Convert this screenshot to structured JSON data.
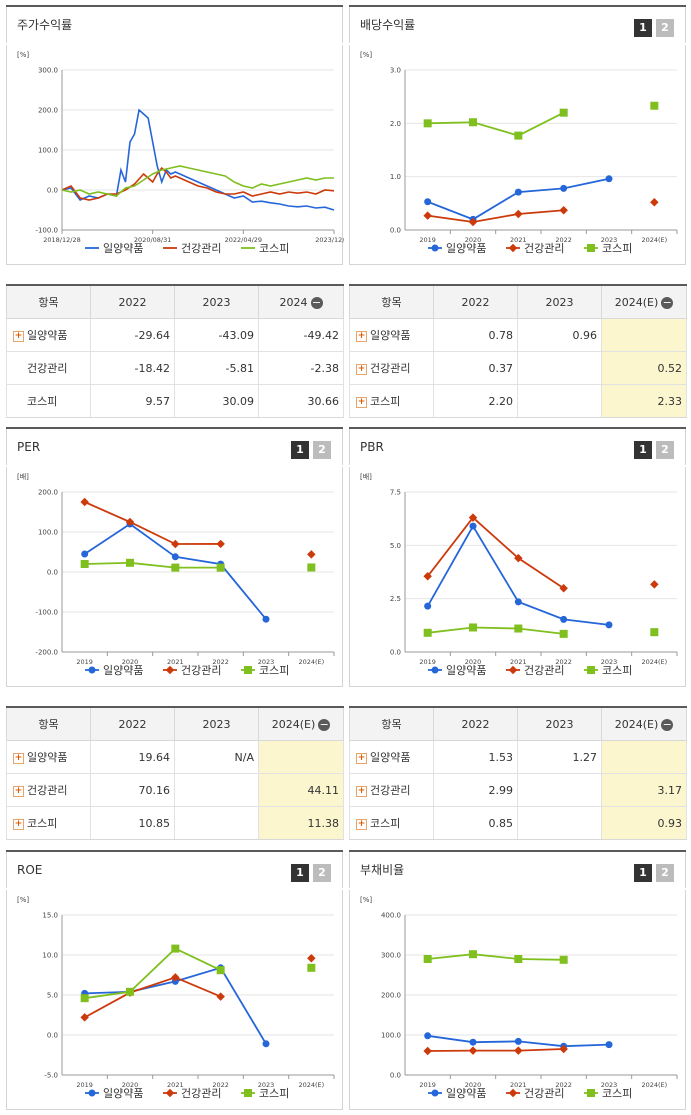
{
  "colors": {
    "series": [
      "#2566d9",
      "#cc3a0c",
      "#7fbf1e"
    ]
  },
  "panels": {
    "stock": {
      "title": "주가수익률"
    },
    "dividend": {
      "title": "배당수익률"
    },
    "per": {
      "title": "PER"
    },
    "pbr": {
      "title": "PBR"
    },
    "roe": {
      "title": "ROE"
    },
    "debt": {
      "title": "부채비율"
    }
  },
  "pager": {
    "page1": "1",
    "page2": "2"
  },
  "tables": {
    "stock": {
      "header": [
        "항목",
        "2022",
        "2023",
        "2024"
      ],
      "rows": [
        {
          "name": "일양약품",
          "v": [
            "-29.64",
            "-43.09",
            "-49.42"
          ],
          "plus": true
        },
        {
          "name": "건강관리",
          "v": [
            "-18.42",
            "-5.81",
            "-2.38"
          ],
          "plus": false
        },
        {
          "name": "코스피",
          "v": [
            "9.57",
            "30.09",
            "30.66"
          ],
          "plus": false
        }
      ]
    },
    "dividend": {
      "header": [
        "항목",
        "2022",
        "2023",
        "2024(E)"
      ],
      "rows": [
        {
          "name": "일양약품",
          "v": [
            "0.78",
            "0.96",
            ""
          ],
          "plus": true
        },
        {
          "name": "건강관리",
          "v": [
            "0.37",
            "",
            "0.52"
          ],
          "plus": true
        },
        {
          "name": "코스피",
          "v": [
            "2.20",
            "",
            "2.33"
          ],
          "plus": true
        }
      ]
    },
    "per": {
      "header": [
        "항목",
        "2022",
        "2023",
        "2024(E)"
      ],
      "rows": [
        {
          "name": "일양약품",
          "v": [
            "19.64",
            "N/A",
            ""
          ],
          "plus": true
        },
        {
          "name": "건강관리",
          "v": [
            "70.16",
            "",
            "44.11"
          ],
          "plus": true
        },
        {
          "name": "코스피",
          "v": [
            "10.85",
            "",
            "11.38"
          ],
          "plus": true
        }
      ]
    },
    "pbr": {
      "header": [
        "항목",
        "2022",
        "2023",
        "2024(E)"
      ],
      "rows": [
        {
          "name": "일양약품",
          "v": [
            "1.53",
            "1.27",
            ""
          ],
          "plus": true
        },
        {
          "name": "건강관리",
          "v": [
            "2.99",
            "",
            "3.17"
          ],
          "plus": true
        },
        {
          "name": "코스피",
          "v": [
            "0.85",
            "",
            "0.93"
          ],
          "plus": true
        }
      ]
    }
  },
  "chart_data": [
    {
      "id": "stock",
      "type": "line",
      "ylabel": "[%]",
      "ylim": [
        -100,
        300
      ],
      "yticks": [
        -100,
        0,
        100,
        200,
        300
      ],
      "ytick_labels": [
        "-100.0",
        "0.0",
        "100.0",
        "200.0",
        "300.0"
      ],
      "xtick_labels": [
        "2018/12/28",
        "2020/08/31",
        "2022/04/29",
        "2023/12/28"
      ],
      "xlim": [
        0,
        60
      ],
      "series": [
        {
          "name": "일양약품",
          "x": [
            0,
            2,
            4,
            6,
            8,
            10,
            12,
            13,
            14,
            15,
            16,
            17,
            18,
            19,
            20,
            21,
            22,
            23,
            24,
            25,
            26,
            28,
            30,
            32,
            34,
            36,
            38,
            40,
            42,
            44,
            46,
            48,
            50,
            52,
            54,
            56,
            58,
            60
          ],
          "y": [
            0,
            5,
            -25,
            -15,
            -20,
            -10,
            -15,
            50,
            20,
            120,
            140,
            200,
            190,
            180,
            120,
            60,
            20,
            50,
            40,
            45,
            40,
            30,
            20,
            10,
            0,
            -10,
            -20,
            -15,
            -30,
            -28,
            -32,
            -35,
            -40,
            -42,
            -40,
            -45,
            -43,
            -50
          ]
        },
        {
          "name": "건강관리",
          "x": [
            0,
            2,
            4,
            6,
            8,
            10,
            12,
            14,
            16,
            18,
            19,
            20,
            21,
            22,
            23,
            24,
            25,
            26,
            28,
            30,
            32,
            34,
            36,
            38,
            40,
            42,
            44,
            46,
            48,
            50,
            52,
            54,
            56,
            58,
            60
          ],
          "y": [
            0,
            10,
            -20,
            -25,
            -20,
            -10,
            -10,
            0,
            15,
            40,
            30,
            20,
            40,
            55,
            45,
            30,
            35,
            30,
            20,
            10,
            5,
            -5,
            -10,
            -10,
            -5,
            -15,
            -10,
            -5,
            -10,
            -5,
            -8,
            -5,
            -10,
            0,
            -2
          ]
        },
        {
          "name": "코스피",
          "x": [
            0,
            2,
            4,
            6,
            8,
            10,
            12,
            14,
            16,
            18,
            20,
            21,
            22,
            24,
            26,
            28,
            30,
            32,
            34,
            36,
            38,
            40,
            42,
            44,
            46,
            48,
            50,
            52,
            54,
            56,
            58,
            60
          ],
          "y": [
            0,
            -5,
            0,
            -10,
            -5,
            -10,
            -15,
            5,
            10,
            25,
            40,
            45,
            50,
            55,
            60,
            55,
            50,
            45,
            40,
            35,
            20,
            10,
            5,
            15,
            10,
            15,
            20,
            25,
            30,
            25,
            30,
            30
          ]
        }
      ]
    },
    {
      "id": "dividend",
      "type": "line",
      "ylabel": "[%]",
      "ylim": [
        0,
        3
      ],
      "yticks": [
        0,
        1,
        2,
        3
      ],
      "ytick_labels": [
        "0.0",
        "1.0",
        "2.0",
        "3.0"
      ],
      "categories": [
        "2019",
        "2020",
        "2021",
        "2022",
        "2023",
        "2024(E)"
      ],
      "series": [
        {
          "name": "일양약품",
          "values": [
            0.53,
            0.2,
            0.71,
            0.78,
            0.96,
            null
          ]
        },
        {
          "name": "건강관리",
          "values": [
            0.27,
            0.15,
            0.3,
            0.37,
            null,
            0.52
          ]
        },
        {
          "name": "코스피",
          "values": [
            2.0,
            2.02,
            1.77,
            2.2,
            null,
            2.33
          ]
        }
      ]
    },
    {
      "id": "per",
      "type": "line",
      "ylabel": "[배]",
      "ylim": [
        -200,
        200
      ],
      "yticks": [
        -200,
        -100,
        0,
        100,
        200
      ],
      "ytick_labels": [
        "-200.0",
        "-100.0",
        "0.0",
        "100.0",
        "200.0"
      ],
      "categories": [
        "2019",
        "2020",
        "2021",
        "2022",
        "2023",
        "2024(E)"
      ],
      "series": [
        {
          "name": "일양약품",
          "values": [
            45,
            120,
            38,
            19.64,
            -118,
            null
          ]
        },
        {
          "name": "건강관리",
          "values": [
            175,
            125,
            70,
            70.16,
            null,
            44.11
          ]
        },
        {
          "name": "코스피",
          "values": [
            20,
            23,
            11,
            10.85,
            null,
            11.38
          ]
        }
      ]
    },
    {
      "id": "pbr",
      "type": "line",
      "ylabel": "[배]",
      "ylim": [
        0,
        7.5
      ],
      "yticks": [
        0,
        2.5,
        5,
        7.5
      ],
      "ytick_labels": [
        "0.0",
        "2.5",
        "5.0",
        "7.5"
      ],
      "categories": [
        "2019",
        "2020",
        "2021",
        "2022",
        "2023",
        "2024(E)"
      ],
      "series": [
        {
          "name": "일양약품",
          "values": [
            2.15,
            5.9,
            2.35,
            1.53,
            1.27,
            null
          ]
        },
        {
          "name": "건강관리",
          "values": [
            3.55,
            6.3,
            4.4,
            2.99,
            null,
            3.17
          ]
        },
        {
          "name": "코스피",
          "values": [
            0.9,
            1.15,
            1.1,
            0.85,
            null,
            0.93
          ]
        }
      ]
    },
    {
      "id": "roe",
      "type": "line",
      "ylabel": "[%]",
      "ylim": [
        -5,
        15
      ],
      "yticks": [
        -5,
        0,
        5,
        10,
        15
      ],
      "ytick_labels": [
        "-5.0",
        "0.0",
        "5.0",
        "10.0",
        "15.0"
      ],
      "categories": [
        "2019",
        "2020",
        "2021",
        "2022",
        "2023",
        "2024(E)"
      ],
      "series": [
        {
          "name": "일양약품",
          "values": [
            5.2,
            5.4,
            6.7,
            8.4,
            -1.1,
            null
          ]
        },
        {
          "name": "건강관리",
          "values": [
            2.2,
            5.3,
            7.2,
            4.8,
            null,
            9.6
          ]
        },
        {
          "name": "코스피",
          "values": [
            4.6,
            5.4,
            10.8,
            8.1,
            null,
            8.4
          ]
        }
      ]
    },
    {
      "id": "debt",
      "type": "line",
      "ylabel": "[%]",
      "ylim": [
        0,
        400
      ],
      "yticks": [
        0,
        100,
        200,
        300,
        400
      ],
      "ytick_labels": [
        "0.0",
        "100.0",
        "200.0",
        "300.0",
        "400.0"
      ],
      "categories": [
        "2019",
        "2020",
        "2021",
        "2022",
        "2023",
        "2024(E)"
      ],
      "series": [
        {
          "name": "일양약품",
          "values": [
            98,
            82,
            84,
            72,
            76,
            null
          ]
        },
        {
          "name": "건강관리",
          "values": [
            60,
            61,
            61,
            65,
            null,
            null
          ]
        },
        {
          "name": "코스피",
          "values": [
            290,
            302,
            290,
            288,
            null,
            null
          ]
        }
      ]
    }
  ]
}
